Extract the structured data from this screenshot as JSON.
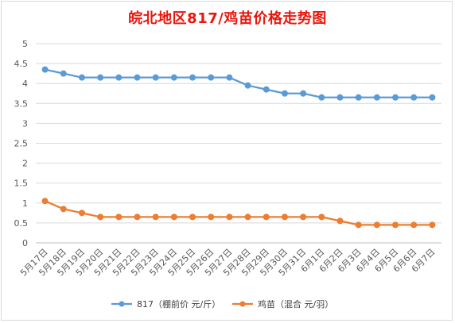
{
  "chart_data": {
    "type": "line",
    "title": "皖北地区817/鸡苗价格走势图",
    "categories": [
      "5月17日",
      "5月18日",
      "5月19日",
      "5月20日",
      "5月21日",
      "5月22日",
      "5月23日",
      "5月24日",
      "5月25日",
      "5月26日",
      "5月27日",
      "5月28日",
      "5月29日",
      "5月30日",
      "5月31日",
      "6月1日",
      "6月2日",
      "6月3日",
      "6月4日",
      "6月5日",
      "6月6日",
      "6月7日"
    ],
    "yticks": [
      "0",
      "0.5",
      "1",
      "1.5",
      "2",
      "2.5",
      "3",
      "3.5",
      "4",
      "4.5",
      "5"
    ],
    "ylim": [
      0,
      5
    ],
    "grid": true,
    "legend_position": "bottom",
    "series": [
      {
        "name": "817（棚前价 元/斤）",
        "color": "#5b9bd5",
        "values": [
          4.35,
          4.25,
          4.15,
          4.15,
          4.15,
          4.15,
          4.15,
          4.15,
          4.15,
          4.15,
          4.15,
          3.95,
          3.85,
          3.75,
          3.75,
          3.65,
          3.65,
          3.65,
          3.65,
          3.65,
          3.65,
          3.65
        ]
      },
      {
        "name": "鸡苗（混合 元/羽）",
        "color": "#ed7d31",
        "values": [
          1.05,
          0.85,
          0.75,
          0.65,
          0.65,
          0.65,
          0.65,
          0.65,
          0.65,
          0.65,
          0.65,
          0.65,
          0.65,
          0.65,
          0.65,
          0.65,
          0.55,
          0.45,
          0.45,
          0.45,
          0.45,
          0.45
        ]
      }
    ]
  }
}
